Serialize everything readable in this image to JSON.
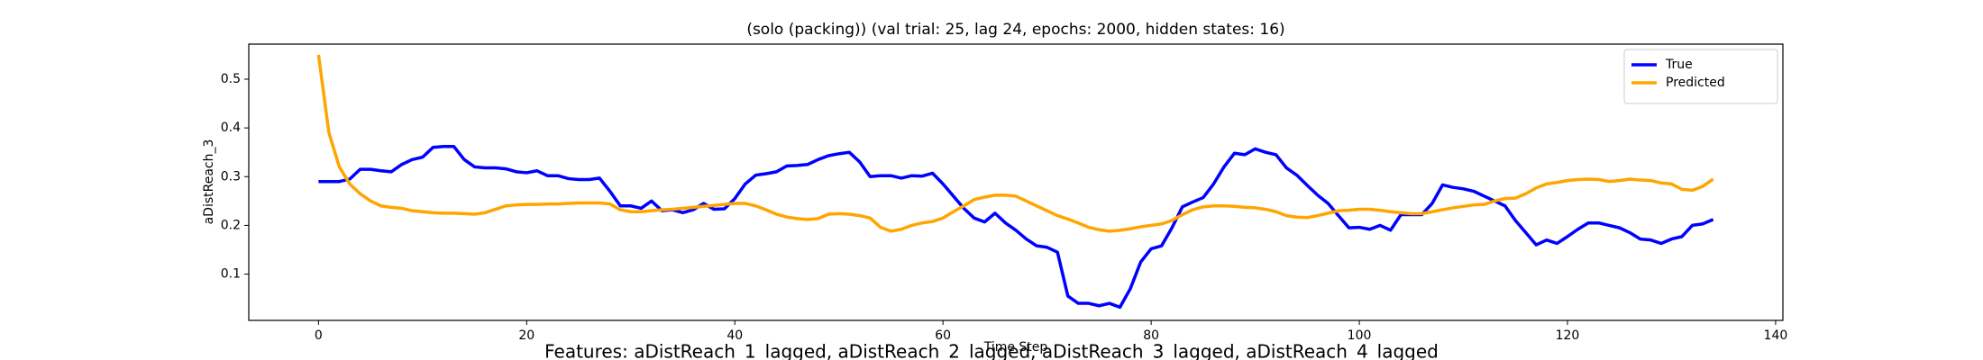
{
  "chart_data": {
    "type": "line",
    "title": "(solo (packing)) (val trial: 25, lag 24, epochs: 2000, hidden states: 16)",
    "x_label": "Time Step",
    "y_label": "aDistReach_3",
    "x": [
      0,
      1,
      2,
      3,
      4,
      5,
      6,
      7,
      8,
      9,
      10,
      11,
      12,
      13,
      14,
      15,
      16,
      17,
      18,
      19,
      20,
      21,
      22,
      23,
      24,
      25,
      26,
      27,
      28,
      29,
      30,
      31,
      32,
      33,
      34,
      35,
      36,
      37,
      38,
      39,
      40,
      41,
      42,
      43,
      44,
      45,
      46,
      47,
      48,
      49,
      50,
      51,
      52,
      53,
      54,
      55,
      56,
      57,
      58,
      59,
      60,
      61,
      62,
      63,
      64,
      65,
      66,
      67,
      68,
      69,
      70,
      71,
      72,
      73,
      74,
      75,
      76,
      77,
      78,
      79,
      80,
      81,
      82,
      83,
      84,
      85,
      86,
      87,
      88,
      89,
      90,
      91,
      92,
      93,
      94,
      95,
      96,
      97,
      98,
      99,
      100,
      101,
      102,
      103,
      104,
      105,
      106,
      107,
      108,
      109,
      110,
      111,
      112,
      113,
      114,
      115,
      116,
      117,
      118,
      119,
      120,
      121,
      122,
      123,
      124,
      125,
      126,
      127,
      128,
      129,
      130,
      131,
      132,
      133,
      134
    ],
    "series": [
      {
        "name": "True",
        "color": "#0000ff",
        "values": [
          0.29,
          0.29,
          0.29,
          0.295,
          0.315,
          0.315,
          0.312,
          0.31,
          0.325,
          0.335,
          0.34,
          0.36,
          0.362,
          0.362,
          0.335,
          0.32,
          0.318,
          0.318,
          0.316,
          0.31,
          0.308,
          0.312,
          0.302,
          0.302,
          0.296,
          0.294,
          0.294,
          0.297,
          0.27,
          0.24,
          0.24,
          0.235,
          0.25,
          0.23,
          0.232,
          0.226,
          0.232,
          0.245,
          0.233,
          0.234,
          0.255,
          0.285,
          0.303,
          0.306,
          0.31,
          0.322,
          0.323,
          0.325,
          0.335,
          0.343,
          0.347,
          0.35,
          0.33,
          0.3,
          0.302,
          0.302,
          0.297,
          0.302,
          0.301,
          0.307,
          0.285,
          0.26,
          0.235,
          0.215,
          0.207,
          0.225,
          0.205,
          0.19,
          0.172,
          0.158,
          0.155,
          0.145,
          0.055,
          0.04,
          0.04,
          0.035,
          0.04,
          0.032,
          0.07,
          0.125,
          0.152,
          0.158,
          0.195,
          0.238,
          0.248,
          0.257,
          0.285,
          0.32,
          0.348,
          0.345,
          0.357,
          0.35,
          0.345,
          0.318,
          0.303,
          0.282,
          0.262,
          0.245,
          0.22,
          0.195,
          0.196,
          0.192,
          0.2,
          0.19,
          0.222,
          0.222,
          0.222,
          0.245,
          0.283,
          0.278,
          0.275,
          0.27,
          0.26,
          0.25,
          0.24,
          0.21,
          0.185,
          0.16,
          0.17,
          0.163,
          0.177,
          0.192,
          0.205,
          0.205,
          0.2,
          0.195,
          0.185,
          0.172,
          0.17,
          0.163,
          0.172,
          0.177,
          0.2,
          0.203,
          0.212
        ]
      },
      {
        "name": "Predicted",
        "color": "#ffa500",
        "values": [
          0.55,
          0.39,
          0.32,
          0.285,
          0.265,
          0.25,
          0.24,
          0.237,
          0.235,
          0.23,
          0.228,
          0.226,
          0.225,
          0.225,
          0.224,
          0.223,
          0.226,
          0.233,
          0.24,
          0.242,
          0.243,
          0.243,
          0.244,
          0.244,
          0.245,
          0.246,
          0.246,
          0.246,
          0.244,
          0.232,
          0.228,
          0.228,
          0.23,
          0.232,
          0.233,
          0.235,
          0.237,
          0.239,
          0.241,
          0.243,
          0.245,
          0.245,
          0.24,
          0.232,
          0.223,
          0.217,
          0.214,
          0.212,
          0.214,
          0.223,
          0.224,
          0.223,
          0.22,
          0.215,
          0.196,
          0.188,
          0.192,
          0.2,
          0.205,
          0.208,
          0.215,
          0.228,
          0.24,
          0.253,
          0.258,
          0.262,
          0.262,
          0.26,
          0.25,
          0.24,
          0.23,
          0.22,
          0.213,
          0.205,
          0.196,
          0.191,
          0.188,
          0.19,
          0.193,
          0.197,
          0.2,
          0.203,
          0.21,
          0.222,
          0.232,
          0.238,
          0.24,
          0.24,
          0.239,
          0.237,
          0.236,
          0.233,
          0.228,
          0.22,
          0.217,
          0.216,
          0.22,
          0.225,
          0.23,
          0.231,
          0.233,
          0.233,
          0.231,
          0.228,
          0.226,
          0.224,
          0.224,
          0.228,
          0.232,
          0.236,
          0.239,
          0.242,
          0.243,
          0.25,
          0.255,
          0.256,
          0.265,
          0.277,
          0.285,
          0.288,
          0.292,
          0.294,
          0.295,
          0.294,
          0.29,
          0.292,
          0.295,
          0.293,
          0.292,
          0.287,
          0.285,
          0.274,
          0.272,
          0.28,
          0.295
        ]
      }
    ],
    "xlim": [
      -6.7,
      140.7
    ],
    "xticks": [
      0,
      20,
      40,
      60,
      80,
      100,
      120,
      140
    ],
    "ylim": [
      0.005,
      0.572
    ],
    "yticks": [
      0.1,
      0.2,
      0.3,
      0.4,
      0.5
    ],
    "legend": "upper right",
    "grid": false
  },
  "caption": "Features: aDistReach_1_lagged, aDistReach_2_lagged, aDistReach_3_lagged, aDistReach_4_lagged"
}
